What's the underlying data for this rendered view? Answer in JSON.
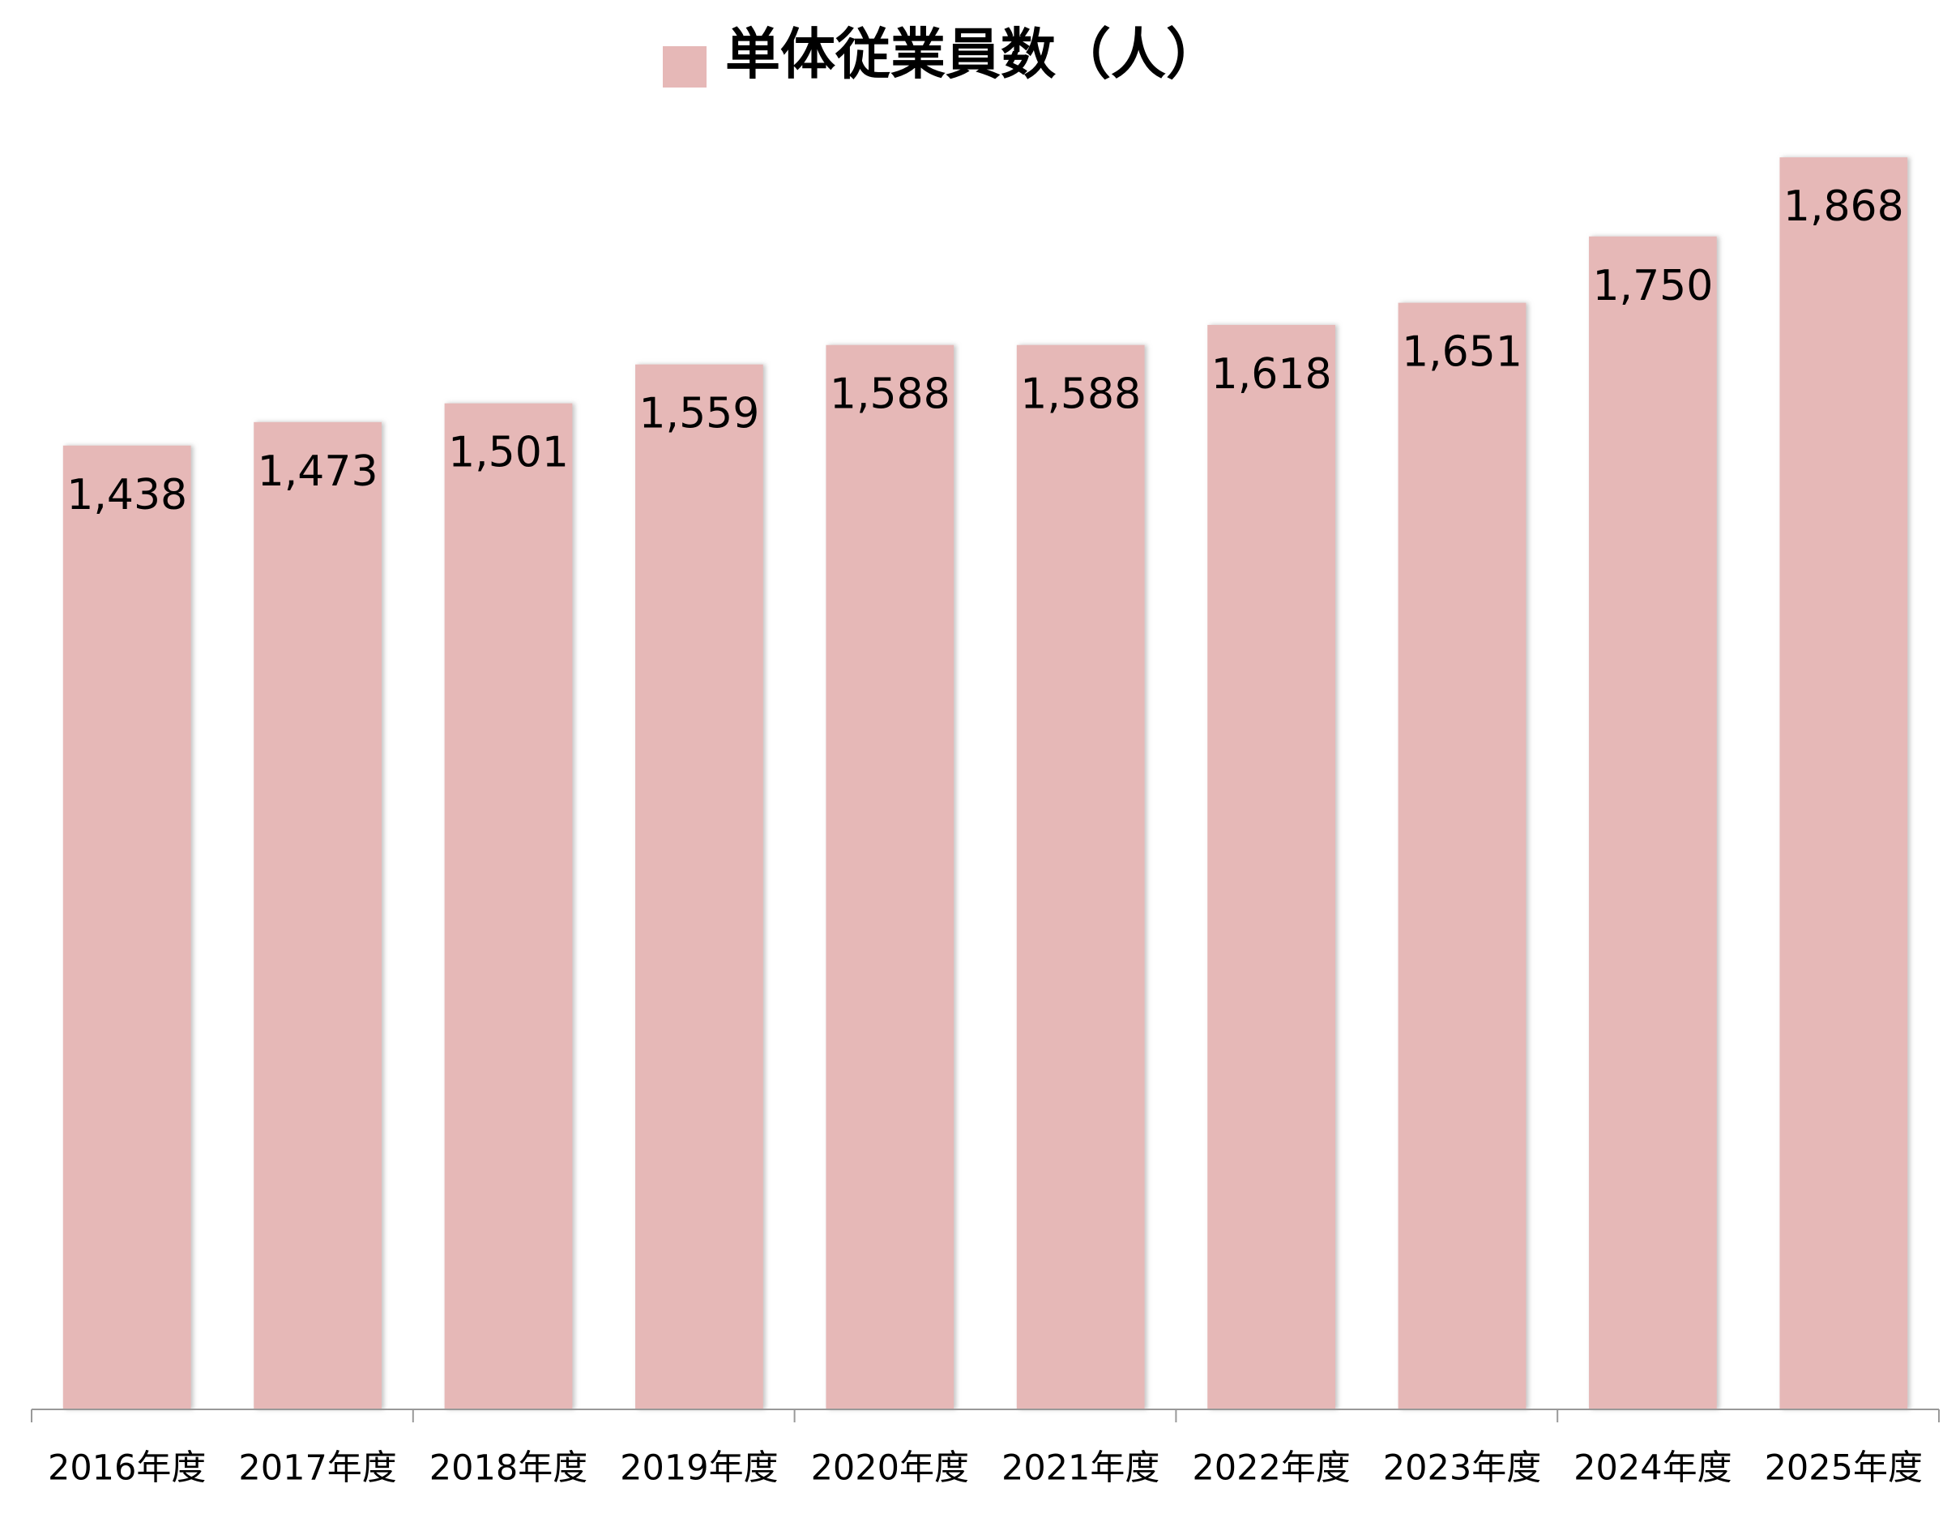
{
  "chart_data": {
    "type": "bar",
    "categories": [
      "2016年度",
      "2017年度",
      "2018年度",
      "2019年度",
      "2020年度",
      "2021年度",
      "2022年度",
      "2023年度",
      "2024年度",
      "2025年度"
    ],
    "series": [
      {
        "name": "単体従業員数（人）",
        "color": "#e6b8b7",
        "values": [
          1438,
          1473,
          1501,
          1559,
          1588,
          1588,
          1618,
          1651,
          1750,
          1868
        ],
        "value_labels": [
          "1,438",
          "1,473",
          "1,501",
          "1,559",
          "1,588",
          "1,588",
          "1,618",
          "1,651",
          "1,750",
          "1,868"
        ]
      }
    ],
    "ylim": [
      0,
      2000
    ]
  }
}
